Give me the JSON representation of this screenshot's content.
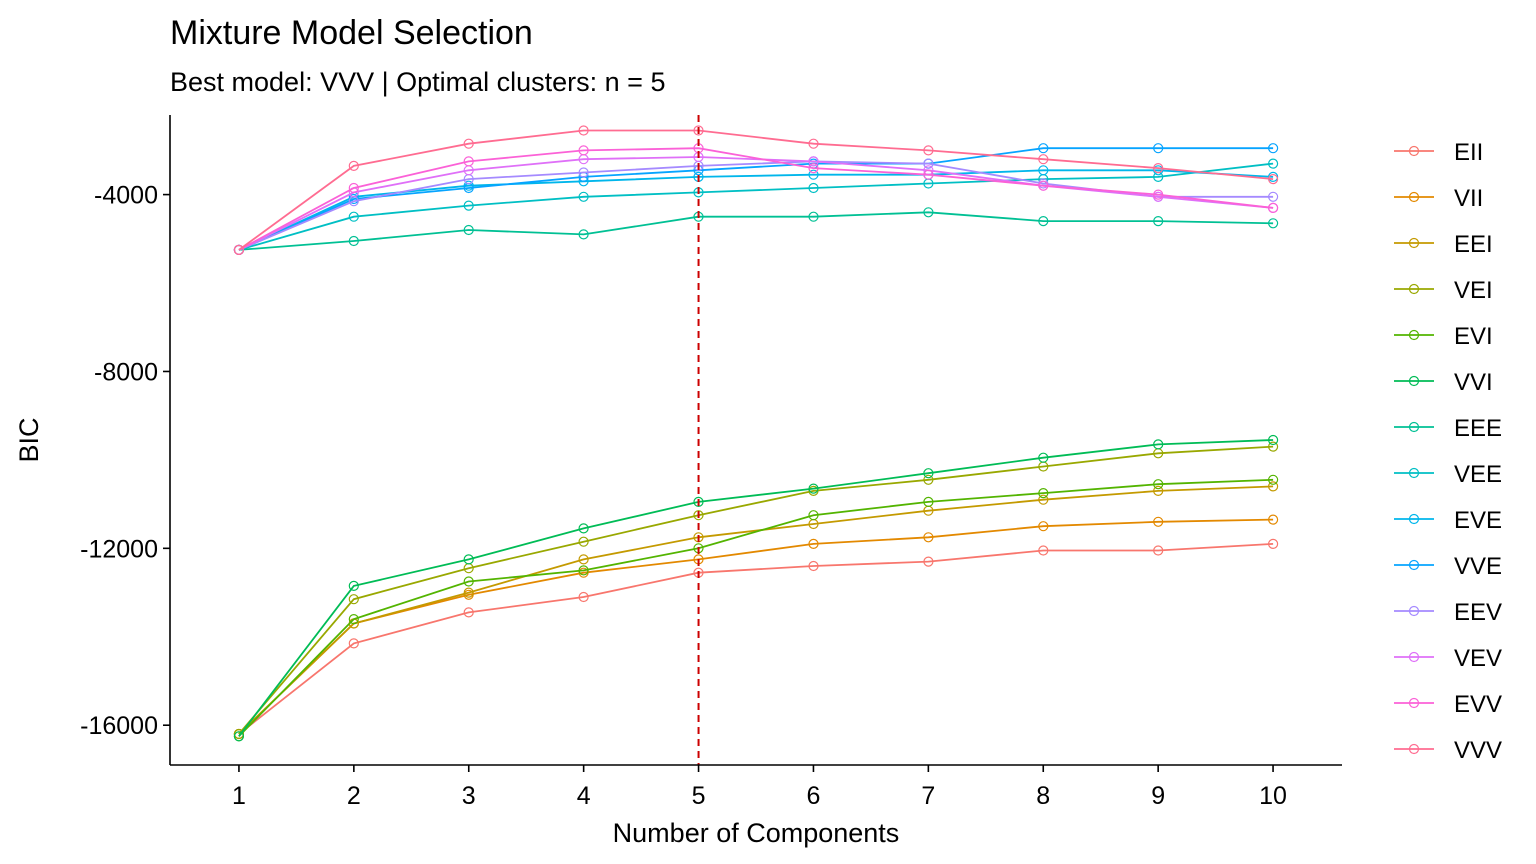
{
  "chart_data": {
    "type": "line",
    "title": "Mixture Model Selection",
    "subtitle": "Best model: VVV | Optimal clusters: n = 5",
    "xlabel": "Number of Components",
    "ylabel": "BIC",
    "x": [
      1,
      2,
      3,
      4,
      5,
      6,
      7,
      8,
      9,
      10
    ],
    "xlim": [
      0.4,
      10.6
    ],
    "ylim": [
      -16900,
      -2200
    ],
    "yticks": [
      -16000,
      -12000,
      -8000,
      -4000
    ],
    "vline": {
      "x": 5,
      "color": "#CC0000",
      "style": "dashed"
    },
    "grid": false,
    "legend_position": "right",
    "series": [
      {
        "name": "EII",
        "color": "#F8766D",
        "values": [
          -16200,
          -14150,
          -13450,
          -13100,
          -12550,
          -12400,
          -12300,
          -12050,
          -12050,
          -11900
        ]
      },
      {
        "name": "VII",
        "color": "#E38900",
        "values": [
          -16200,
          -13700,
          -13050,
          -12550,
          -12250,
          -11900,
          -11750,
          -11500,
          -11400,
          -11350
        ]
      },
      {
        "name": "EEI",
        "color": "#C49A00",
        "values": [
          -16200,
          -13700,
          -13000,
          -12250,
          -11750,
          -11450,
          -11150,
          -10900,
          -10700,
          -10600
        ]
      },
      {
        "name": "VEI",
        "color": "#99A800",
        "values": [
          -16200,
          -13150,
          -12450,
          -11850,
          -11250,
          -10700,
          -10450,
          -10150,
          -9850,
          -9700
        ]
      },
      {
        "name": "EVI",
        "color": "#53B400",
        "values": [
          -16250,
          -13600,
          -12750,
          -12500,
          -12000,
          -11250,
          -10950,
          -10750,
          -10550,
          -10450
        ]
      },
      {
        "name": "VVI",
        "color": "#00BC56",
        "values": [
          -16250,
          -12850,
          -12250,
          -11550,
          -10950,
          -10650,
          -10300,
          -9950,
          -9650,
          -9550
        ]
      },
      {
        "name": "EEE",
        "color": "#00C094",
        "values": [
          -5250,
          -5050,
          -4800,
          -4900,
          -4500,
          -4500,
          -4400,
          -4600,
          -4600,
          -4650
        ]
      },
      {
        "name": "VEE",
        "color": "#00BFC4",
        "values": [
          -5250,
          -4500,
          -4250,
          -4050,
          -3950,
          -3850,
          -3750,
          -3650,
          -3600,
          -3300
        ]
      },
      {
        "name": "EVE",
        "color": "#00B6EB",
        "values": [
          -5250,
          -4050,
          -3800,
          -3700,
          -3600,
          -3550,
          -3550,
          -3450,
          -3450,
          -3600
        ]
      },
      {
        "name": "VVE",
        "color": "#06A4FF",
        "values": [
          -5250,
          -4100,
          -3850,
          -3600,
          -3450,
          -3300,
          -3300,
          -2950,
          -2950,
          -2950
        ]
      },
      {
        "name": "EEV",
        "color": "#A58AFF",
        "values": [
          -5250,
          -4150,
          -3650,
          -3500,
          -3350,
          -3250,
          -3300,
          -3750,
          -4050,
          -4050
        ]
      },
      {
        "name": "VEV",
        "color": "#DF70F8",
        "values": [
          -5250,
          -3950,
          -3450,
          -3200,
          -3150,
          -3250,
          -3450,
          -3800,
          -4050,
          -4300
        ]
      },
      {
        "name": "EVV",
        "color": "#FB61D7",
        "values": [
          -5250,
          -3850,
          -3250,
          -3000,
          -2950,
          -3400,
          -3550,
          -3800,
          -4000,
          -4300
        ]
      },
      {
        "name": "VVV",
        "color": "#FF6C91",
        "values": [
          -5250,
          -3350,
          -2850,
          -2550,
          -2550,
          -2850,
          -3000,
          -3200,
          -3400,
          -3650
        ]
      }
    ]
  }
}
